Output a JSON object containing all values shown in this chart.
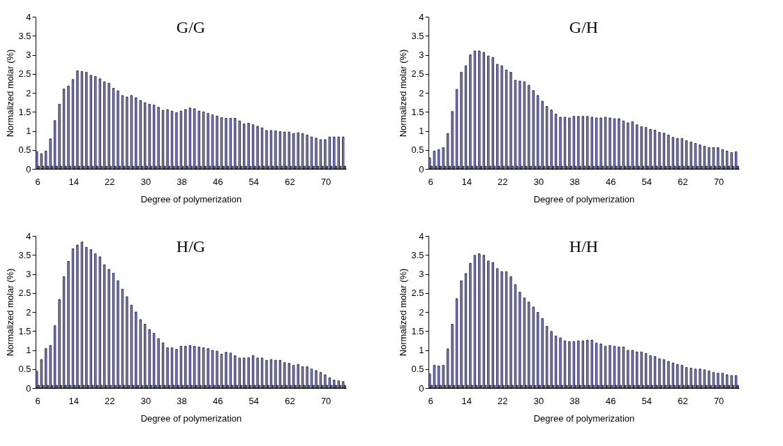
{
  "chart_data": [
    {
      "type": "bar",
      "title": "G/G",
      "xlabel": "Degree of polymerization",
      "ylabel": "Normalized molar (%)",
      "categories": [
        "6",
        null,
        null,
        null,
        null,
        null,
        null,
        null,
        "14",
        null,
        null,
        null,
        null,
        null,
        null,
        null,
        "22",
        null,
        null,
        null,
        null,
        null,
        null,
        null,
        "30",
        null,
        null,
        null,
        null,
        null,
        null,
        null,
        "38",
        null,
        null,
        null,
        null,
        null,
        null,
        null,
        "46",
        null,
        null,
        null,
        null,
        null,
        null,
        null,
        "54",
        null,
        null,
        null,
        null,
        null,
        null,
        null,
        "62",
        null,
        null,
        null,
        null,
        null,
        null,
        null,
        "70",
        null,
        null,
        null,
        null
      ],
      "ylim": [
        0,
        4
      ],
      "yticks": [
        0,
        0.5,
        1,
        1.5,
        2,
        2.5,
        3,
        3.5,
        4
      ],
      "series": [
        {
          "color": "#8c8cf0",
          "values": [
            0.45,
            0.4,
            0.47,
            0.79,
            1.27,
            1.7,
            2.1,
            2.18,
            2.35,
            2.58,
            2.56,
            2.54,
            2.46,
            2.43,
            2.37,
            2.29,
            2.25,
            2.12,
            2.05,
            1.93,
            1.89,
            1.93,
            1.87,
            1.8,
            1.74,
            1.7,
            1.68,
            1.62,
            1.54,
            1.56,
            1.52,
            1.48,
            1.52,
            1.56,
            1.6,
            1.58,
            1.52,
            1.5,
            1.46,
            1.42,
            1.39,
            1.35,
            1.33,
            1.33,
            1.33,
            1.26,
            1.18,
            1.2,
            1.16,
            1.12,
            1.08,
            1.01,
            1.01,
            1.0,
            0.98,
            0.97,
            0.97,
            0.93,
            0.95,
            0.93,
            0.89,
            0.84,
            0.81,
            0.77,
            0.77,
            0.84,
            0.84,
            0.84,
            0.84
          ]
        },
        {
          "color": "#707070",
          "values": [
            0.07,
            0.07,
            0.07,
            0.07,
            0.07,
            0.07,
            0.07,
            0.07,
            0.07,
            0.07,
            0.07,
            0.07,
            0.07,
            0.07,
            0.07,
            0.07,
            0.07,
            0.07,
            0.07,
            0.07,
            0.07,
            0.07,
            0.07,
            0.07,
            0.07,
            0.07,
            0.07,
            0.07,
            0.07,
            0.07,
            0.07,
            0.07,
            0.07,
            0.07,
            0.07,
            0.07,
            0.07,
            0.07,
            0.07,
            0.07,
            0.07,
            0.07,
            0.07,
            0.07,
            0.07,
            0.07,
            0.07,
            0.07,
            0.07,
            0.07,
            0.07,
            0.07,
            0.07,
            0.07,
            0.07,
            0.07,
            0.07,
            0.07,
            0.07,
            0.07,
            0.07,
            0.07,
            0.07,
            0.07,
            0.07,
            0.07,
            0.07,
            0.07,
            0.07
          ]
        }
      ]
    },
    {
      "type": "bar",
      "title": "G/H",
      "xlabel": "Degree of polymerization",
      "ylabel": "Normalized molar (%)",
      "categories": [
        "6",
        null,
        null,
        null,
        null,
        null,
        null,
        null,
        "14",
        null,
        null,
        null,
        null,
        null,
        null,
        null,
        "22",
        null,
        null,
        null,
        null,
        null,
        null,
        null,
        "30",
        null,
        null,
        null,
        null,
        null,
        null,
        null,
        "38",
        null,
        null,
        null,
        null,
        null,
        null,
        null,
        "46",
        null,
        null,
        null,
        null,
        null,
        null,
        null,
        "54",
        null,
        null,
        null,
        null,
        null,
        null,
        null,
        "62",
        null,
        null,
        null,
        null,
        null,
        null,
        null,
        "70",
        null,
        null,
        null,
        null
      ],
      "ylim": [
        0,
        4
      ],
      "yticks": [
        0,
        0.5,
        1,
        1.5,
        2,
        2.5,
        3,
        3.5,
        4
      ],
      "series": [
        {
          "color": "#8c8cf0",
          "values": [
            0.29,
            0.47,
            0.51,
            0.56,
            0.93,
            1.51,
            2.09,
            2.54,
            2.71,
            3.0,
            3.1,
            3.1,
            3.06,
            2.97,
            2.93,
            2.75,
            2.71,
            2.6,
            2.54,
            2.33,
            2.31,
            2.29,
            2.2,
            2.06,
            1.93,
            1.78,
            1.64,
            1.55,
            1.44,
            1.36,
            1.36,
            1.34,
            1.38,
            1.38,
            1.38,
            1.38,
            1.36,
            1.34,
            1.34,
            1.36,
            1.34,
            1.32,
            1.32,
            1.26,
            1.21,
            1.24,
            1.16,
            1.11,
            1.09,
            1.04,
            1.02,
            0.96,
            0.94,
            0.89,
            0.83,
            0.8,
            0.8,
            0.74,
            0.71,
            0.67,
            0.63,
            0.6,
            0.56,
            0.56,
            0.56,
            0.51,
            0.47,
            0.43,
            0.45
          ]
        },
        {
          "color": "#707070",
          "values": [
            0.07,
            0.07,
            0.07,
            0.07,
            0.07,
            0.07,
            0.07,
            0.07,
            0.07,
            0.07,
            0.07,
            0.07,
            0.07,
            0.07,
            0.07,
            0.07,
            0.07,
            0.07,
            0.07,
            0.07,
            0.07,
            0.07,
            0.07,
            0.07,
            0.07,
            0.07,
            0.07,
            0.07,
            0.07,
            0.07,
            0.07,
            0.07,
            0.07,
            0.07,
            0.07,
            0.07,
            0.07,
            0.07,
            0.07,
            0.07,
            0.07,
            0.07,
            0.07,
            0.07,
            0.07,
            0.07,
            0.07,
            0.07,
            0.07,
            0.07,
            0.07,
            0.07,
            0.07,
            0.07,
            0.07,
            0.07,
            0.07,
            0.07,
            0.07,
            0.07,
            0.07,
            0.07,
            0.07,
            0.07,
            0.07,
            0.07,
            0.07,
            0.07,
            0.07
          ]
        }
      ]
    },
    {
      "type": "bar",
      "title": "H/G",
      "xlabel": "Degree of polymerization",
      "ylabel": "Normalized molar (%)",
      "categories": [
        "6",
        null,
        null,
        null,
        null,
        null,
        null,
        null,
        "14",
        null,
        null,
        null,
        null,
        null,
        null,
        null,
        "22",
        null,
        null,
        null,
        null,
        null,
        null,
        null,
        "30",
        null,
        null,
        null,
        null,
        null,
        null,
        null,
        "38",
        null,
        null,
        null,
        null,
        null,
        null,
        null,
        "46",
        null,
        null,
        null,
        null,
        null,
        null,
        null,
        "54",
        null,
        null,
        null,
        null,
        null,
        null,
        null,
        "62",
        null,
        null,
        null,
        null,
        null,
        null,
        null,
        "70",
        null,
        null,
        null,
        null
      ],
      "ylim": [
        0,
        4
      ],
      "yticks": [
        0,
        0.5,
        1,
        1.5,
        2,
        2.5,
        3,
        3.5,
        4
      ],
      "series": [
        {
          "color": "#8c8cf0",
          "values": [
            0.44,
            0.75,
            1.04,
            1.12,
            1.64,
            2.33,
            2.93,
            3.33,
            3.66,
            3.76,
            3.84,
            3.7,
            3.64,
            3.53,
            3.45,
            3.24,
            3.12,
            3.02,
            2.82,
            2.6,
            2.4,
            2.18,
            2.0,
            1.8,
            1.68,
            1.54,
            1.44,
            1.3,
            1.19,
            1.06,
            1.06,
            1.02,
            1.1,
            1.1,
            1.12,
            1.1,
            1.08,
            1.06,
            1.04,
            0.99,
            0.97,
            0.89,
            0.94,
            0.92,
            0.85,
            0.79,
            0.79,
            0.8,
            0.85,
            0.79,
            0.79,
            0.73,
            0.75,
            0.73,
            0.73,
            0.67,
            0.65,
            0.6,
            0.62,
            0.56,
            0.56,
            0.5,
            0.46,
            0.41,
            0.35,
            0.27,
            0.21,
            0.19,
            0.17
          ]
        },
        {
          "color": "#707070",
          "values": [
            0.07,
            0.07,
            0.07,
            0.07,
            0.07,
            0.07,
            0.07,
            0.07,
            0.07,
            0.07,
            0.07,
            0.07,
            0.07,
            0.07,
            0.07,
            0.07,
            0.07,
            0.07,
            0.07,
            0.07,
            0.07,
            0.07,
            0.07,
            0.07,
            0.07,
            0.07,
            0.07,
            0.07,
            0.07,
            0.07,
            0.07,
            0.07,
            0.07,
            0.07,
            0.07,
            0.07,
            0.07,
            0.07,
            0.07,
            0.07,
            0.07,
            0.07,
            0.07,
            0.07,
            0.07,
            0.07,
            0.07,
            0.07,
            0.07,
            0.07,
            0.07,
            0.07,
            0.07,
            0.07,
            0.07,
            0.07,
            0.07,
            0.07,
            0.07,
            0.07,
            0.07,
            0.07,
            0.07,
            0.07,
            0.07,
            0.07,
            0.07,
            0.07,
            0.07
          ]
        }
      ]
    },
    {
      "type": "bar",
      "title": "H/H",
      "xlabel": "Degree of polymerization",
      "ylabel": "Normalized molar (%)",
      "categories": [
        "6",
        null,
        null,
        null,
        null,
        null,
        null,
        null,
        "14",
        null,
        null,
        null,
        null,
        null,
        null,
        null,
        "22",
        null,
        null,
        null,
        null,
        null,
        null,
        null,
        "30",
        null,
        null,
        null,
        null,
        null,
        null,
        null,
        "38",
        null,
        null,
        null,
        null,
        null,
        null,
        null,
        "46",
        null,
        null,
        null,
        null,
        null,
        null,
        null,
        "54",
        null,
        null,
        null,
        null,
        null,
        null,
        null,
        "62",
        null,
        null,
        null,
        null,
        null,
        null,
        null,
        "70",
        null,
        null,
        null,
        null
      ],
      "ylim": [
        0,
        4
      ],
      "yticks": [
        0,
        0.5,
        1,
        1.5,
        2,
        2.5,
        3,
        3.5,
        4
      ],
      "series": [
        {
          "color": "#8c8cf0",
          "values": [
            0.37,
            0.6,
            0.58,
            0.6,
            1.03,
            1.68,
            2.35,
            2.82,
            3.01,
            3.28,
            3.49,
            3.53,
            3.49,
            3.34,
            3.3,
            3.14,
            3.06,
            3.06,
            2.93,
            2.72,
            2.52,
            2.37,
            2.26,
            2.13,
            1.99,
            1.83,
            1.62,
            1.49,
            1.37,
            1.32,
            1.24,
            1.22,
            1.22,
            1.24,
            1.24,
            1.26,
            1.26,
            1.18,
            1.16,
            1.1,
            1.12,
            1.1,
            1.08,
            1.08,
            0.99,
            0.99,
            0.95,
            0.95,
            0.91,
            0.85,
            0.83,
            0.77,
            0.75,
            0.7,
            0.66,
            0.62,
            0.6,
            0.54,
            0.52,
            0.5,
            0.5,
            0.48,
            0.45,
            0.41,
            0.39,
            0.39,
            0.35,
            0.33,
            0.33
          ]
        },
        {
          "color": "#707070",
          "values": [
            0.07,
            0.07,
            0.07,
            0.07,
            0.07,
            0.07,
            0.07,
            0.07,
            0.07,
            0.07,
            0.07,
            0.07,
            0.07,
            0.07,
            0.07,
            0.07,
            0.07,
            0.07,
            0.07,
            0.07,
            0.07,
            0.07,
            0.07,
            0.07,
            0.07,
            0.07,
            0.07,
            0.07,
            0.07,
            0.07,
            0.07,
            0.07,
            0.07,
            0.07,
            0.07,
            0.07,
            0.07,
            0.07,
            0.07,
            0.07,
            0.07,
            0.07,
            0.07,
            0.07,
            0.07,
            0.07,
            0.07,
            0.07,
            0.07,
            0.07,
            0.07,
            0.07,
            0.07,
            0.07,
            0.07,
            0.07,
            0.07,
            0.07,
            0.07,
            0.07,
            0.07,
            0.07,
            0.07,
            0.07,
            0.07,
            0.07,
            0.07,
            0.07,
            0.07
          ]
        }
      ]
    }
  ]
}
